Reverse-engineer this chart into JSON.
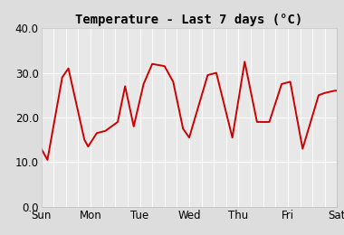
{
  "title": "Temperature - Last 7 days (°C)",
  "x_labels": [
    "Sun",
    "Mon",
    "Tue",
    "Wed",
    "Thu",
    "Fri",
    "Sat"
  ],
  "ylim": [
    0,
    40
  ],
  "yticks": [
    0.0,
    10.0,
    20.0,
    30.0,
    40.0
  ],
  "line_color": "#cc0000",
  "bg_color": "#dddddd",
  "plot_bg_color": "#e8e8e8",
  "grid_color": "#ffffff",
  "title_fontsize": 10,
  "tick_fontsize": 8.5,
  "line_width": 1.4,
  "x_data": [
    0,
    0.5,
    1.7,
    2.2,
    3.5,
    3.8,
    4.5,
    5.2,
    6.2,
    6.8,
    7.5,
    8.3,
    9.0,
    10.0,
    10.7,
    11.5,
    12.0,
    13.5,
    14.2,
    15.5,
    16.5,
    17.5,
    18.5,
    19.5,
    20.2,
    21.2,
    22.5,
    23.0,
    23.8,
    24.0
  ],
  "y_data": [
    13.0,
    10.5,
    29.0,
    31.0,
    15.0,
    13.5,
    16.5,
    17.0,
    19.0,
    27.0,
    18.0,
    27.5,
    32.0,
    31.5,
    28.0,
    17.5,
    15.5,
    29.5,
    30.0,
    15.5,
    32.5,
    19.0,
    19.0,
    27.5,
    28.0,
    13.0,
    25.0,
    25.5,
    26.0,
    26.0
  ]
}
